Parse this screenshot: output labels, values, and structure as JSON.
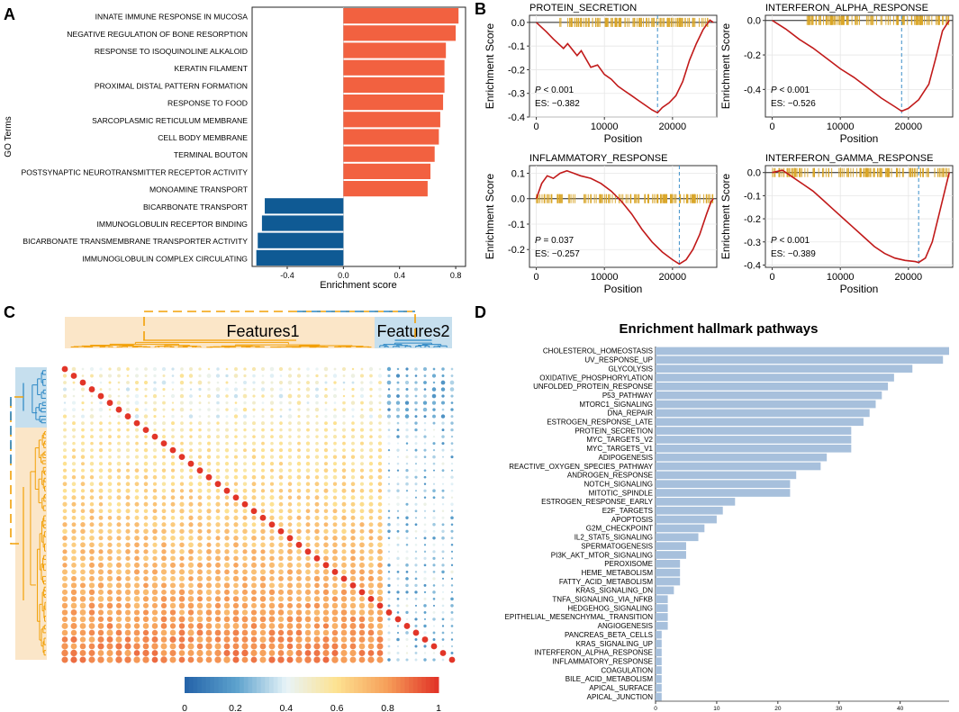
{
  "panel_labels": [
    "A",
    "B",
    "C",
    "D"
  ],
  "colors": {
    "pos_bar": "#f26140",
    "neg_bar": "#0f5a94",
    "hallmark_bar": "#a7c0dc",
    "gsea_curve": "#c11a1a",
    "gsea_hits": "#d9a526",
    "gsea_peak": "#3c8fc9",
    "feat1": "#f2a007",
    "feat2": "#2a86c4"
  },
  "chart_data": [
    {
      "panel": "A",
      "type": "bar",
      "orientation": "horizontal",
      "ylabel": "GO Terms",
      "xlabel": "Enrichment score",
      "xlim": [
        -0.65,
        0.87
      ],
      "xticks": [
        "-0.4",
        "0.0",
        "0.4",
        "0.8"
      ],
      "xtick_values": [
        -0.4,
        0.0,
        0.4,
        0.8
      ],
      "categories": [
        "INNATE IMMUNE RESPONSE IN MUCOSA",
        "NEGATIVE REGULATION OF BONE RESORPTION",
        "RESPONSE TO ISOQUINOLINE ALKALOID",
        "KERATIN FILAMENT",
        "PROXIMAL DISTAL PATTERN FORMATION",
        "RESPONSE TO FOOD",
        "SARCOPLASMIC RETICULUM MEMBRANE",
        "CELL BODY MEMBRANE",
        "TERMINAL BOUTON",
        "POSTSYNAPTIC NEUROTRANSMITTER RECEPTOR ACTIVITY",
        "MONOAMINE TRANSPORT",
        "BICARBONATE TRANSPORT",
        "IMMUNOGLOBULIN RECEPTOR BINDING",
        "BICARBONATE TRANSMEMBRANE TRANSPORTER ACTIVITY",
        "IMMUNOGLOBULIN COMPLEX CIRCULATING"
      ],
      "values": [
        0.82,
        0.8,
        0.73,
        0.72,
        0.72,
        0.71,
        0.69,
        0.68,
        0.65,
        0.62,
        0.6,
        -0.56,
        -0.58,
        -0.61,
        -0.62
      ]
    },
    {
      "panel": "B",
      "type": "line",
      "xlabel": "Position",
      "ylabel": "Enrichment Score",
      "xticks": [
        "0",
        "10000",
        "20000"
      ],
      "xtick_values": [
        0,
        10000,
        20000
      ],
      "xlim": [
        -1000,
        26500
      ],
      "plots": [
        {
          "title": "PROTEIN_SECRETION",
          "ylim": [
            -0.4,
            0.03
          ],
          "yticks": [
            "0.0",
            "-0.1",
            "-0.2",
            "-0.3",
            "-0.4"
          ],
          "ytick_values": [
            0.0,
            -0.1,
            -0.2,
            -0.3,
            -0.4
          ],
          "p_label": "P",
          "p_text": " < 0.001",
          "es_text": "ES: −0.382",
          "peak_x": 17800,
          "hit_range": [
            3000,
            25500
          ],
          "curve_x": [
            0,
            1500,
            2500,
            4000,
            4600,
            6000,
            6600,
            8000,
            9000,
            10000,
            11000,
            12000,
            13000,
            14000,
            15000,
            16000,
            17000,
            17800,
            18500,
            19500,
            20500,
            21500,
            22500,
            23500,
            24500,
            25500,
            26000
          ],
          "curve_y": [
            0.0,
            -0.04,
            -0.07,
            -0.11,
            -0.09,
            -0.14,
            -0.12,
            -0.19,
            -0.18,
            -0.22,
            -0.24,
            -0.27,
            -0.29,
            -0.31,
            -0.33,
            -0.35,
            -0.37,
            -0.382,
            -0.36,
            -0.34,
            -0.31,
            -0.25,
            -0.16,
            -0.09,
            -0.03,
            0.01,
            0.0
          ]
        },
        {
          "title": "INTERFERON_ALPHA_RESPONSE",
          "ylim": [
            -0.56,
            0.03
          ],
          "yticks": [
            "0.0",
            "-0.2",
            "-0.4"
          ],
          "ytick_values": [
            0.0,
            -0.2,
            -0.4
          ],
          "p_label": "P",
          "p_text": " < 0.001",
          "es_text": "ES: −0.526",
          "peak_x": 19000,
          "hit_range": [
            5000,
            26000
          ],
          "curve_x": [
            0,
            2000,
            4000,
            6000,
            8000,
            10000,
            12000,
            14000,
            16000,
            18000,
            19000,
            20000,
            21500,
            23000,
            24000,
            25000,
            26000
          ],
          "curve_y": [
            0.0,
            -0.05,
            -0.11,
            -0.16,
            -0.22,
            -0.28,
            -0.33,
            -0.39,
            -0.45,
            -0.5,
            -0.526,
            -0.51,
            -0.46,
            -0.37,
            -0.22,
            -0.06,
            0.0
          ]
        },
        {
          "title": "INFLAMMATORY_RESPONSE",
          "ylim": [
            -0.27,
            0.13
          ],
          "yticks": [
            "0.1",
            "0.0",
            "-0.1",
            "-0.2"
          ],
          "ytick_values": [
            0.1,
            0.0,
            -0.1,
            -0.2
          ],
          "p_label": "P",
          "p_text": " = 0.037",
          "es_text": "ES: −0.257",
          "peak_x": 21000,
          "hit_range": [
            0,
            26000
          ],
          "curve_x": [
            0,
            800,
            1600,
            2500,
            3500,
            4500,
            5500,
            6500,
            8000,
            9500,
            11000,
            12500,
            14000,
            15500,
            17000,
            18500,
            20000,
            21000,
            22000,
            23000,
            24000,
            25000,
            25700,
            26000
          ],
          "curve_y": [
            0.0,
            0.06,
            0.09,
            0.08,
            0.1,
            0.11,
            0.1,
            0.09,
            0.08,
            0.06,
            0.03,
            -0.01,
            -0.06,
            -0.12,
            -0.17,
            -0.21,
            -0.24,
            -0.257,
            -0.24,
            -0.2,
            -0.14,
            -0.06,
            -0.01,
            0.0
          ]
        },
        {
          "title": "INTERFERON_GAMMA_RESPONSE",
          "ylim": [
            -0.41,
            0.03
          ],
          "yticks": [
            "0.0",
            "-0.1",
            "-0.2",
            "-0.3",
            "-0.4"
          ],
          "ytick_values": [
            0.0,
            -0.1,
            -0.2,
            -0.3,
            -0.4
          ],
          "p_label": "P",
          "p_text": " < 0.001",
          "es_text": "ES: −0.389",
          "peak_x": 21500,
          "hit_range": [
            0,
            26000
          ],
          "curve_x": [
            0,
            1500,
            3000,
            4500,
            6000,
            7500,
            9000,
            10500,
            12000,
            13500,
            15000,
            16500,
            18000,
            19500,
            21000,
            21500,
            22500,
            23500,
            24500,
            25500,
            26000
          ],
          "curve_y": [
            0.0,
            0.01,
            -0.02,
            -0.05,
            -0.08,
            -0.12,
            -0.16,
            -0.2,
            -0.24,
            -0.28,
            -0.32,
            -0.35,
            -0.37,
            -0.38,
            -0.385,
            -0.389,
            -0.37,
            -0.3,
            -0.18,
            -0.06,
            0.0
          ]
        }
      ]
    },
    {
      "panel": "C",
      "type": "heatmap",
      "labels": [
        "Features1",
        "Features2"
      ],
      "group_sizes": [
        62,
        14
      ],
      "colorbar_ticks": [
        "0",
        "0.2",
        "0.4",
        "0.6",
        "0.8",
        "1"
      ],
      "colorbar_values": [
        0,
        0.2,
        0.4,
        0.6,
        0.8,
        1
      ],
      "value_range": [
        0,
        1
      ]
    },
    {
      "panel": "D",
      "type": "bar",
      "orientation": "horizontal",
      "title": "Enrichment hallmark pathways",
      "xlim": [
        0,
        48
      ],
      "xticks": [
        "0",
        "10",
        "20",
        "30",
        "40"
      ],
      "xtick_values": [
        0,
        10,
        20,
        30,
        40
      ],
      "categories": [
        "CHOLESTEROL_HOMEOSTASIS",
        "UV_RESPONSE_UP",
        "GLYCOLYSIS",
        "OXIDATIVE_PHOSPHORYLATION",
        "UNFOLDED_PROTEIN_RESPONSE",
        "P53_PATHWAY",
        "MTORC1_SIGNALING",
        "DNA_REPAIR",
        "ESTROGEN_RESPONSE_LATE",
        "PROTEIN_SECRETION",
        "MYC_TARGETS_V2",
        "MYC_TARGETS_V1",
        "ADIPOGENESIS",
        "REACTIVE_OXYGEN_SPECIES_PATHWAY",
        "ANDROGEN_RESPONSE",
        "NOTCH_SIGNALING",
        "MITOTIC_SPINDLE",
        "ESTROGEN_RESPONSE_EARLY",
        "E2F_TARGETS",
        "APOPTOSIS",
        "G2M_CHECKPOINT",
        "IL2_STAT5_SIGNALING",
        "SPERMATOGENESIS",
        "PI3K_AKT_MTOR_SIGNALING",
        "PEROXISOME",
        "HEME_METABOLISM",
        "FATTY_ACID_METABOLISM",
        "KRAS_SIGNALING_DN",
        "TNFA_SIGNALING_VIA_NFKB",
        "HEDGEHOG_SIGNALING",
        "EPITHELIAL_MESENCHYMAL_TRANSITION",
        "ANGIOGENESIS",
        "PANCREAS_BETA_CELLS",
        "KRAS_SIGNALING_UP",
        "INTERFERON_ALPHA_RESPONSE",
        "INFLAMMATORY_RESPONSE",
        "COAGULATION",
        "BILE_ACID_METABOLISM",
        "APICAL_SURFACE",
        "APICAL_JUNCTION"
      ],
      "values": [
        48,
        47,
        42,
        39,
        38,
        37,
        36,
        35,
        34,
        32,
        32,
        32,
        28,
        27,
        23,
        22,
        22,
        13,
        11,
        10,
        8,
        7,
        5,
        5,
        4,
        4,
        4,
        3,
        2,
        2,
        2,
        2,
        1,
        1,
        1,
        1,
        1,
        1,
        1,
        1
      ]
    }
  ]
}
